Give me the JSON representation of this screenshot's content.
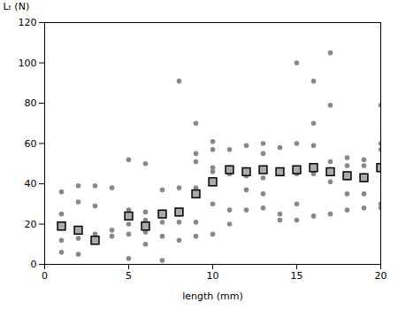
{
  "chart_data": {
    "type": "scatter",
    "xlabel": "length (mm)",
    "ylabel": "Lₜ (N)",
    "xlim": [
      0,
      20
    ],
    "ylim": [
      0,
      120
    ],
    "xticks": [
      0,
      5,
      10,
      15,
      20
    ],
    "yticks": [
      0,
      20,
      40,
      60,
      80,
      100,
      120
    ],
    "series": [
      {
        "color": "#888888",
        "marker": "circle",
        "x": [
          1,
          1,
          1,
          1,
          1,
          2,
          2,
          2,
          2,
          2,
          3,
          3,
          3,
          3,
          4,
          4,
          4,
          5,
          5,
          5,
          5,
          5,
          6,
          6,
          6,
          6,
          6,
          7,
          7,
          7,
          7,
          7,
          8,
          8,
          8,
          8,
          8,
          9,
          9,
          9,
          9,
          9,
          9,
          10,
          10,
          10,
          10,
          10,
          10,
          11,
          11,
          11,
          11,
          11,
          12,
          12,
          12,
          12,
          12,
          13,
          13,
          13,
          13,
          13,
          13,
          14,
          14,
          14,
          14,
          15,
          15,
          15,
          15,
          15,
          15,
          16,
          16,
          16,
          16,
          16,
          16,
          17,
          17,
          17,
          17,
          17,
          17,
          17,
          18,
          18,
          18,
          18,
          18,
          18,
          19,
          19,
          19,
          19,
          19,
          19,
          20,
          20,
          20,
          20,
          20,
          20
        ],
        "values": [
          6,
          12,
          19,
          25,
          36,
          5,
          13,
          17,
          31,
          39,
          13,
          15,
          29,
          39,
          14,
          17,
          38,
          3,
          15,
          20,
          27,
          52,
          10,
          16,
          22,
          26,
          50,
          2,
          14,
          21,
          25,
          37,
          12,
          21,
          25,
          38,
          91,
          14,
          21,
          38,
          51,
          55,
          70,
          15,
          30,
          46,
          48,
          57,
          61,
          20,
          27,
          45,
          48,
          57,
          27,
          37,
          44,
          46,
          59,
          28,
          35,
          43,
          47,
          55,
          60,
          22,
          25,
          46,
          58,
          22,
          30,
          45,
          47,
          60,
          100,
          24,
          45,
          49,
          59,
          70,
          91,
          25,
          41,
          45,
          47,
          51,
          79,
          105,
          27,
          35,
          43,
          44,
          49,
          53,
          28,
          35,
          42,
          44,
          49,
          52,
          28,
          30,
          48,
          57,
          60,
          79
        ]
      },
      {
        "color": "#aaaaaa",
        "edge_color": "#000000",
        "marker": "square",
        "x": [
          1,
          2,
          3,
          5,
          6,
          7,
          8,
          9,
          10,
          11,
          12,
          13,
          14,
          15,
          16,
          17,
          18,
          19,
          20
        ],
        "values": [
          19,
          17,
          12,
          24,
          19,
          25,
          26,
          35,
          41,
          47,
          46,
          47,
          46,
          47,
          48,
          46,
          44,
          43,
          48
        ]
      }
    ]
  }
}
